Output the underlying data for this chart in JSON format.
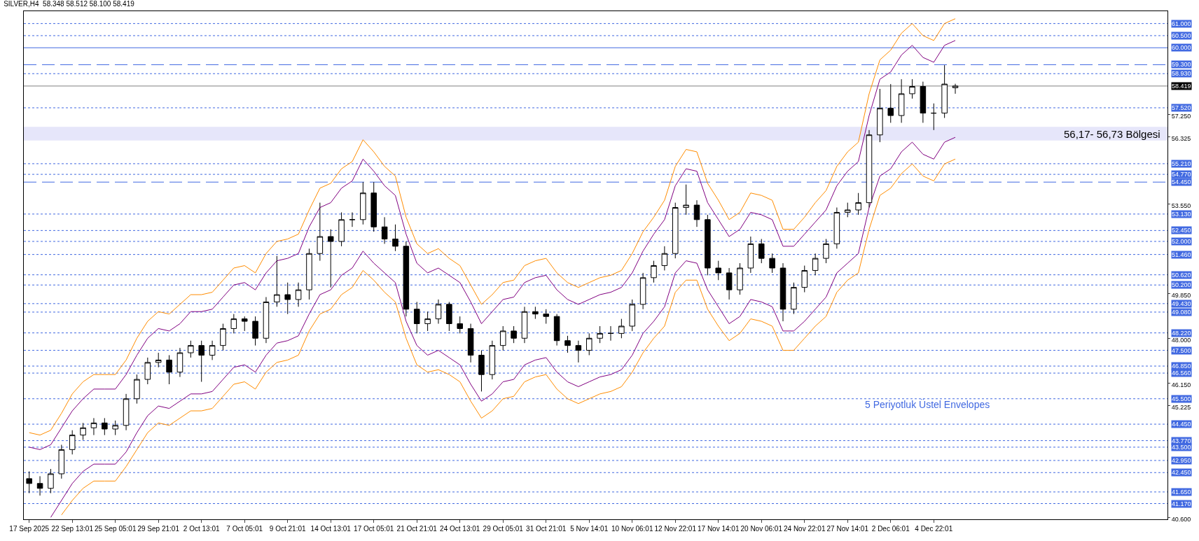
{
  "chart_data": {
    "type": "candlestick",
    "title": "SILVER,H4  58.348 58.512 58.100 58.419",
    "categories": [
      "17 Sep 2025",
      null,
      null,
      null,
      "22 Sep 13:01",
      null,
      null,
      null,
      "25 Sep 05:01",
      null,
      null,
      null,
      "29 Sep 21:01",
      null,
      null,
      null,
      "2 Oct 13:01",
      null,
      null,
      null,
      "7 Oct 05:01",
      null,
      null,
      null,
      "9 Oct 21:01",
      null,
      null,
      null,
      "14 Oct 13:01",
      null,
      null,
      null,
      "17 Oct 05:01",
      null,
      null,
      null,
      "21 Oct 21:01",
      null,
      null,
      null,
      "24 Oct 13:01",
      null,
      null,
      null,
      "29 Oct 05:01",
      null,
      null,
      null,
      "31 Oct 21:01",
      null,
      null,
      null,
      "5 Nov 14:01",
      null,
      null,
      null,
      "10 Nov 06:01",
      null,
      null,
      null,
      "12 Nov 22:01",
      null,
      null,
      null,
      "17 Nov 14:01",
      null,
      null,
      null,
      "20 Nov 06:01",
      null,
      null,
      null,
      "24 Nov 22:01",
      null,
      null,
      null,
      "27 Nov 14:01",
      null,
      null,
      null,
      "2 Dec 06:01",
      null,
      null,
      null,
      "4 Dec 22:01",
      null,
      null
    ],
    "ohlc": [
      [
        42.2,
        42.5,
        41.6,
        42.0
      ],
      [
        42.0,
        42.3,
        41.5,
        41.8
      ],
      [
        41.8,
        42.6,
        41.6,
        42.4
      ],
      [
        42.4,
        43.6,
        42.2,
        43.4
      ],
      [
        43.4,
        44.2,
        43.2,
        44.0
      ],
      [
        44.0,
        44.5,
        43.8,
        44.3
      ],
      [
        44.3,
        44.7,
        44.0,
        44.5
      ],
      [
        44.5,
        44.7,
        44.0,
        44.25
      ],
      [
        44.25,
        44.6,
        44.0,
        44.4
      ],
      [
        44.4,
        45.7,
        44.2,
        45.5
      ],
      [
        45.5,
        46.5,
        45.3,
        46.3
      ],
      [
        46.3,
        47.2,
        46.1,
        47.0
      ],
      [
        47.0,
        47.4,
        46.8,
        47.1
      ],
      [
        47.1,
        47.3,
        46.1,
        46.6
      ],
      [
        46.6,
        47.6,
        46.4,
        47.4
      ],
      [
        47.4,
        47.9,
        47.2,
        47.7
      ],
      [
        47.7,
        47.9,
        46.2,
        47.3
      ],
      [
        47.3,
        47.9,
        47.1,
        47.7
      ],
      [
        47.7,
        48.6,
        47.5,
        48.4
      ],
      [
        48.4,
        49.0,
        48.2,
        48.8
      ],
      [
        48.8,
        48.9,
        48.3,
        48.7
      ],
      [
        48.7,
        48.9,
        47.7,
        48.0
      ],
      [
        48.0,
        49.7,
        47.8,
        49.5
      ],
      [
        49.5,
        51.4,
        49.3,
        49.8
      ],
      [
        49.8,
        50.3,
        49.0,
        49.6
      ],
      [
        49.6,
        50.3,
        49.3,
        50.0
      ],
      [
        50.0,
        51.7,
        49.6,
        51.5
      ],
      [
        51.5,
        53.6,
        51.2,
        52.2
      ],
      [
        52.2,
        52.5,
        50.1,
        52.0
      ],
      [
        52.0,
        53.2,
        51.8,
        52.9
      ],
      [
        52.9,
        53.2,
        52.6,
        52.9
      ],
      [
        52.9,
        54.45,
        52.7,
        54.0
      ],
      [
        54.0,
        54.45,
        52.4,
        52.6
      ],
      [
        52.6,
        53.0,
        51.9,
        52.1
      ],
      [
        52.1,
        52.7,
        51.6,
        51.8
      ],
      [
        51.8,
        52.0,
        48.9,
        49.2
      ],
      [
        49.2,
        49.5,
        48.2,
        48.6
      ],
      [
        48.6,
        49.1,
        48.3,
        48.8
      ],
      [
        48.8,
        49.6,
        48.6,
        49.4
      ],
      [
        49.4,
        49.5,
        48.3,
        48.6
      ],
      [
        48.6,
        48.9,
        48.2,
        48.4
      ],
      [
        48.4,
        48.6,
        47.0,
        47.3
      ],
      [
        47.3,
        47.5,
        45.8,
        46.5
      ],
      [
        46.5,
        47.9,
        46.3,
        47.7
      ],
      [
        47.7,
        48.5,
        47.5,
        48.3
      ],
      [
        48.3,
        48.5,
        47.8,
        48.0
      ],
      [
        48.0,
        49.3,
        47.8,
        49.1
      ],
      [
        49.1,
        49.3,
        48.8,
        49.0
      ],
      [
        49.0,
        49.2,
        48.6,
        48.9
      ],
      [
        48.9,
        49.0,
        47.7,
        47.9
      ],
      [
        47.9,
        48.1,
        47.4,
        47.7
      ],
      [
        47.7,
        47.9,
        47.0,
        47.5
      ],
      [
        47.5,
        48.2,
        47.3,
        48.0
      ],
      [
        48.0,
        48.5,
        47.8,
        48.2
      ],
      [
        48.2,
        48.5,
        47.9,
        48.2
      ],
      [
        48.2,
        48.8,
        48.0,
        48.5
      ],
      [
        48.5,
        49.6,
        48.3,
        49.4
      ],
      [
        49.4,
        50.7,
        49.2,
        50.5
      ],
      [
        50.5,
        51.2,
        50.3,
        51.0
      ],
      [
        51.0,
        51.8,
        50.8,
        51.5
      ],
      [
        51.5,
        53.6,
        51.3,
        53.4
      ],
      [
        53.4,
        54.35,
        53.1,
        53.5
      ],
      [
        53.5,
        53.7,
        52.6,
        52.9
      ],
      [
        52.9,
        53.1,
        50.6,
        50.9
      ],
      [
        50.9,
        51.2,
        50.4,
        50.7
      ],
      [
        50.7,
        50.9,
        49.6,
        50.0
      ],
      [
        50.0,
        51.1,
        49.8,
        50.9
      ],
      [
        50.9,
        52.2,
        50.7,
        51.9
      ],
      [
        51.9,
        52.1,
        51.1,
        51.3
      ],
      [
        51.3,
        51.5,
        50.7,
        50.9
      ],
      [
        50.9,
        51.1,
        48.7,
        49.2
      ],
      [
        49.2,
        50.3,
        49.0,
        50.1
      ],
      [
        50.1,
        51.0,
        49.9,
        50.8
      ],
      [
        50.8,
        51.5,
        50.6,
        51.3
      ],
      [
        51.3,
        52.1,
        51.1,
        51.9
      ],
      [
        51.9,
        53.4,
        51.7,
        53.2
      ],
      [
        53.2,
        53.6,
        53.0,
        53.3
      ],
      [
        53.3,
        54.0,
        53.1,
        53.6
      ],
      [
        53.6,
        56.6,
        53.4,
        56.4
      ],
      [
        56.4,
        58.3,
        56.1,
        57.5
      ],
      [
        57.5,
        58.5,
        56.9,
        57.2
      ],
      [
        57.2,
        58.7,
        56.9,
        58.1
      ],
      [
        58.1,
        58.7,
        57.9,
        58.4
      ],
      [
        58.4,
        58.6,
        56.9,
        57.3
      ],
      [
        57.3,
        57.7,
        56.6,
        57.3
      ],
      [
        57.3,
        59.28,
        57.1,
        58.5
      ],
      [
        58.348,
        58.512,
        58.1,
        58.419
      ]
    ],
    "series": [
      {
        "type": "line",
        "color": "#ff8c00",
        "values": [
          44.1,
          44.0,
          44.2,
          44.9,
          45.7,
          46.2,
          46.5,
          46.5,
          46.5,
          47.1,
          48.0,
          48.7,
          49.1,
          49.0,
          49.4,
          49.8,
          49.8,
          49.9,
          50.4,
          50.9,
          51.0,
          50.7,
          51.5,
          52.0,
          52.1,
          52.3,
          53.3,
          54.2,
          54.4,
          55.0,
          55.3,
          56.2,
          55.7,
          55.1,
          54.7,
          53.0,
          51.9,
          51.5,
          51.7,
          51.3,
          51.0,
          50.2,
          49.4,
          49.8,
          50.3,
          50.4,
          51.0,
          51.2,
          51.3,
          50.7,
          50.3,
          50.1,
          50.3,
          50.5,
          50.6,
          50.8,
          51.5,
          52.4,
          53.0,
          53.7,
          55.1,
          55.8,
          55.7,
          54.4,
          53.7,
          52.9,
          53.2,
          54.0,
          53.9,
          53.7,
          52.5,
          52.5,
          53.0,
          53.6,
          54.1,
          55.1,
          55.7,
          56.1,
          58.1,
          59.5,
          59.9,
          60.6,
          61.0,
          60.5,
          60.3,
          61.0,
          61.2
        ]
      },
      {
        "type": "line",
        "color": "#800080",
        "values": [
          43.5,
          43.4,
          43.6,
          44.3,
          45.0,
          45.5,
          45.9,
          45.9,
          45.9,
          46.5,
          47.3,
          48.0,
          48.4,
          48.3,
          48.6,
          49.1,
          49.1,
          49.2,
          49.7,
          50.2,
          50.3,
          50.0,
          50.7,
          51.2,
          51.3,
          51.5,
          52.6,
          53.4,
          53.6,
          54.2,
          54.5,
          55.4,
          54.9,
          54.3,
          53.9,
          52.3,
          51.1,
          50.7,
          50.9,
          50.6,
          50.3,
          49.5,
          48.6,
          49.1,
          49.6,
          49.7,
          50.3,
          50.5,
          50.6,
          50.0,
          49.6,
          49.4,
          49.6,
          49.8,
          49.9,
          50.1,
          50.7,
          51.6,
          52.3,
          52.9,
          54.3,
          55.0,
          54.9,
          53.6,
          52.9,
          52.2,
          52.5,
          53.2,
          53.1,
          52.9,
          51.8,
          51.8,
          52.3,
          52.8,
          53.3,
          54.3,
          54.9,
          55.3,
          57.2,
          58.7,
          59.0,
          59.7,
          60.1,
          59.6,
          59.4,
          60.1,
          60.3
        ]
      },
      {
        "type": "line",
        "color": "#800080",
        "values": [
          null,
          null,
          40.6,
          41.3,
          42.0,
          42.5,
          42.8,
          42.8,
          42.8,
          43.3,
          44.1,
          44.8,
          45.2,
          45.1,
          45.4,
          45.7,
          45.7,
          45.8,
          46.3,
          46.8,
          46.9,
          46.6,
          47.3,
          47.8,
          47.9,
          48.1,
          49.0,
          49.8,
          50.0,
          50.6,
          50.9,
          51.6,
          51.1,
          50.7,
          50.3,
          48.7,
          47.7,
          47.3,
          47.5,
          47.2,
          46.9,
          46.1,
          45.4,
          45.7,
          46.2,
          46.3,
          46.9,
          47.1,
          47.2,
          46.6,
          46.2,
          46.0,
          46.2,
          46.4,
          46.5,
          46.7,
          47.3,
          48.2,
          48.7,
          49.3,
          50.7,
          51.2,
          51.1,
          50.0,
          49.3,
          48.6,
          48.9,
          49.6,
          49.5,
          49.3,
          48.3,
          48.3,
          48.7,
          49.2,
          49.7,
          50.7,
          51.1,
          51.5,
          53.4,
          54.7,
          55.0,
          55.7,
          56.1,
          55.6,
          55.4,
          56.1,
          56.3
        ]
      },
      {
        "type": "line",
        "color": "#ff8c00",
        "values": [
          null,
          null,
          null,
          40.7,
          41.3,
          41.8,
          42.1,
          42.1,
          42.1,
          42.7,
          43.4,
          44.1,
          44.5,
          44.4,
          44.7,
          45.0,
          45.0,
          45.1,
          45.6,
          46.1,
          46.2,
          45.9,
          46.6,
          47.0,
          47.1,
          47.3,
          48.3,
          49.0,
          49.2,
          49.8,
          50.1,
          50.8,
          50.4,
          49.9,
          49.5,
          48.0,
          46.9,
          46.6,
          46.7,
          46.5,
          46.2,
          45.4,
          44.7,
          45.0,
          45.5,
          45.6,
          46.2,
          46.4,
          46.5,
          45.9,
          45.5,
          45.3,
          45.5,
          45.7,
          45.8,
          46.0,
          46.6,
          47.4,
          48.0,
          48.5,
          49.9,
          50.4,
          50.4,
          49.2,
          48.5,
          47.9,
          48.2,
          48.8,
          48.7,
          48.5,
          47.5,
          47.5,
          48.0,
          48.5,
          48.9,
          49.9,
          50.4,
          50.7,
          52.5,
          53.9,
          54.2,
          54.8,
          55.2,
          54.7,
          54.5,
          55.2,
          55.4
        ]
      }
    ],
    "ylim": [
      40.52,
      61.51
    ],
    "yticks": [
      {
        "value": 40.6,
        "label": "40.600"
      },
      {
        "value": 45.225,
        "label": "45.225"
      },
      {
        "value": 46.15,
        "label": "46.150"
      },
      {
        "value": 48.0,
        "label": "48.000"
      },
      {
        "value": 49.85,
        "label": "49.850"
      },
      {
        "value": 53.55,
        "label": "53.550"
      },
      {
        "value": 56.325,
        "label": "56.325"
      },
      {
        "value": 57.25,
        "label": "57.250"
      }
    ],
    "ref_lines": [
      {
        "axis": "y",
        "value": 61.0,
        "label": "61.000",
        "color": "#4169e1",
        "line_style": "dotted"
      },
      {
        "axis": "y",
        "value": 60.5,
        "label": "60.500",
        "color": "#4169e1",
        "line_style": "dotted"
      },
      {
        "axis": "y",
        "value": 60.0,
        "label": "60.000",
        "color": "#4169e1",
        "line_style": "solid"
      },
      {
        "axis": "y",
        "value": 59.3,
        "label": "59.300",
        "color": "#4169e1",
        "line_style": "dashed"
      },
      {
        "axis": "y",
        "value": 58.93,
        "label": "58.930",
        "color": "#4169e1",
        "line_style": "dotted"
      },
      {
        "axis": "y",
        "value": 58.419,
        "label": "58.419",
        "color": "#808080",
        "line_style": "solid"
      },
      {
        "axis": "y",
        "value": 57.52,
        "label": "57.520",
        "color": "#4169e1",
        "line_style": "dotted"
      },
      {
        "axis": "y",
        "value": 55.21,
        "label": "55.210",
        "color": "#4169e1",
        "line_style": "dotted"
      },
      {
        "axis": "y",
        "value": 54.77,
        "label": "54.770",
        "color": "#4169e1",
        "line_style": "dotted"
      },
      {
        "axis": "y",
        "value": 54.45,
        "label": "54.450",
        "color": "#4169e1",
        "line_style": "dashed"
      },
      {
        "axis": "y",
        "value": 53.13,
        "label": "53.130",
        "color": "#4169e1",
        "line_style": "dotted"
      },
      {
        "axis": "y",
        "value": 52.45,
        "label": "52.450",
        "color": "#4169e1",
        "line_style": "dotted"
      },
      {
        "axis": "y",
        "value": 52.0,
        "label": "52.000",
        "color": "#4169e1",
        "line_style": "dotted"
      },
      {
        "axis": "y",
        "value": 51.46,
        "label": "51.460",
        "color": "#4169e1",
        "line_style": "dotted"
      },
      {
        "axis": "y",
        "value": 50.62,
        "label": "50.620",
        "color": "#4169e1",
        "line_style": "dotted"
      },
      {
        "axis": "y",
        "value": 50.2,
        "label": "50.200",
        "color": "#4169e1",
        "line_style": "dotted"
      },
      {
        "axis": "y",
        "value": 49.43,
        "label": "49.430",
        "color": "#4169e1",
        "line_style": "dotted"
      },
      {
        "axis": "y",
        "value": 49.08,
        "label": "49.080",
        "color": "#4169e1",
        "line_style": "dotted"
      },
      {
        "axis": "y",
        "value": 48.22,
        "label": "48.220",
        "color": "#4169e1",
        "line_style": "dotted"
      },
      {
        "axis": "y",
        "value": 47.5,
        "label": "47.500",
        "color": "#4169e1",
        "line_style": "dotted"
      },
      {
        "axis": "y",
        "value": 46.85,
        "label": "46.850",
        "color": "#4169e1",
        "line_style": "dotted"
      },
      {
        "axis": "y",
        "value": 46.56,
        "label": "46.560",
        "color": "#4169e1",
        "line_style": "dotted"
      },
      {
        "axis": "y",
        "value": 45.5,
        "label": "45.500",
        "color": "#4169e1",
        "line_style": "dotted"
      },
      {
        "axis": "y",
        "value": 44.45,
        "label": "44.450",
        "color": "#4169e1",
        "line_style": "dotted"
      },
      {
        "axis": "y",
        "value": 43.77,
        "label": "43.770",
        "color": "#4169e1",
        "line_style": "dotted"
      },
      {
        "axis": "y",
        "value": 43.5,
        "label": "43.500",
        "color": "#4169e1",
        "line_style": "dotted"
      },
      {
        "axis": "y",
        "value": 42.95,
        "label": "42.950",
        "color": "#4169e1",
        "line_style": "dotted"
      },
      {
        "axis": "y",
        "value": 42.45,
        "label": "42.450",
        "color": "#4169e1",
        "line_style": "dotted"
      },
      {
        "axis": "y",
        "value": 41.65,
        "label": "41.650",
        "color": "#4169e1",
        "line_style": "dotted"
      },
      {
        "axis": "y",
        "value": 41.17,
        "label": "41.170",
        "color": "#4169e1",
        "line_style": "dotted"
      }
    ],
    "bands": [
      {
        "axis": "y",
        "from": 56.17,
        "to": 56.73,
        "label": "56,17- 56,73 Bölgesi",
        "color": "#e6e6fa"
      }
    ],
    "annotations": [
      "5 Periyotluk Üstel Envelopes"
    ],
    "grid": false
  }
}
